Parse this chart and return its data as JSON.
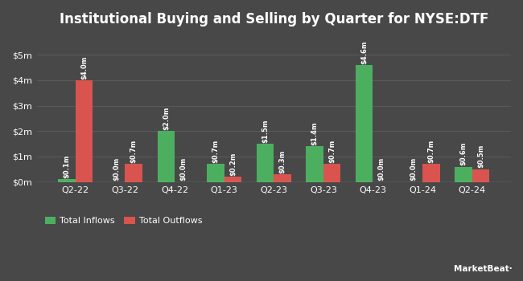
{
  "title": "Institutional Buying and Selling by Quarter for NYSE:DTF",
  "quarters": [
    "Q2-22",
    "Q3-22",
    "Q4-22",
    "Q1-23",
    "Q2-23",
    "Q3-23",
    "Q4-23",
    "Q1-24",
    "Q2-24"
  ],
  "inflows": [
    0.1,
    0.0,
    2.0,
    0.7,
    1.5,
    1.4,
    4.6,
    0.0,
    0.6
  ],
  "outflows": [
    4.0,
    0.7,
    0.0,
    0.2,
    0.3,
    0.7,
    0.0,
    0.7,
    0.5
  ],
  "inflow_labels": [
    "$0.1m",
    "$0.0m",
    "$2.0m",
    "$0.7m",
    "$1.5m",
    "$1.4m",
    "$4.6m",
    "$0.0m",
    "$0.6m"
  ],
  "outflow_labels": [
    "$4.0m",
    "$0.7m",
    "$0.0m",
    "$0.2m",
    "$0.3m",
    "$0.7m",
    "$0.0m",
    "$0.7m",
    "$0.5m"
  ],
  "inflow_color": "#4caf60",
  "outflow_color": "#d9534f",
  "background_color": "#484848",
  "text_color": "#ffffff",
  "grid_color": "#5a5a5a",
  "bar_width": 0.35,
  "ylim": [
    0,
    5.8
  ],
  "yticks": [
    0,
    1,
    2,
    3,
    4,
    5
  ],
  "ytick_labels": [
    "$0m",
    "$1m",
    "$2m",
    "$3m",
    "$4m",
    "$5m"
  ],
  "legend_inflow": "Total Inflows",
  "legend_outflow": "Total Outflows",
  "title_fontsize": 12,
  "label_fontsize": 6.0,
  "tick_fontsize": 8,
  "legend_fontsize": 8
}
